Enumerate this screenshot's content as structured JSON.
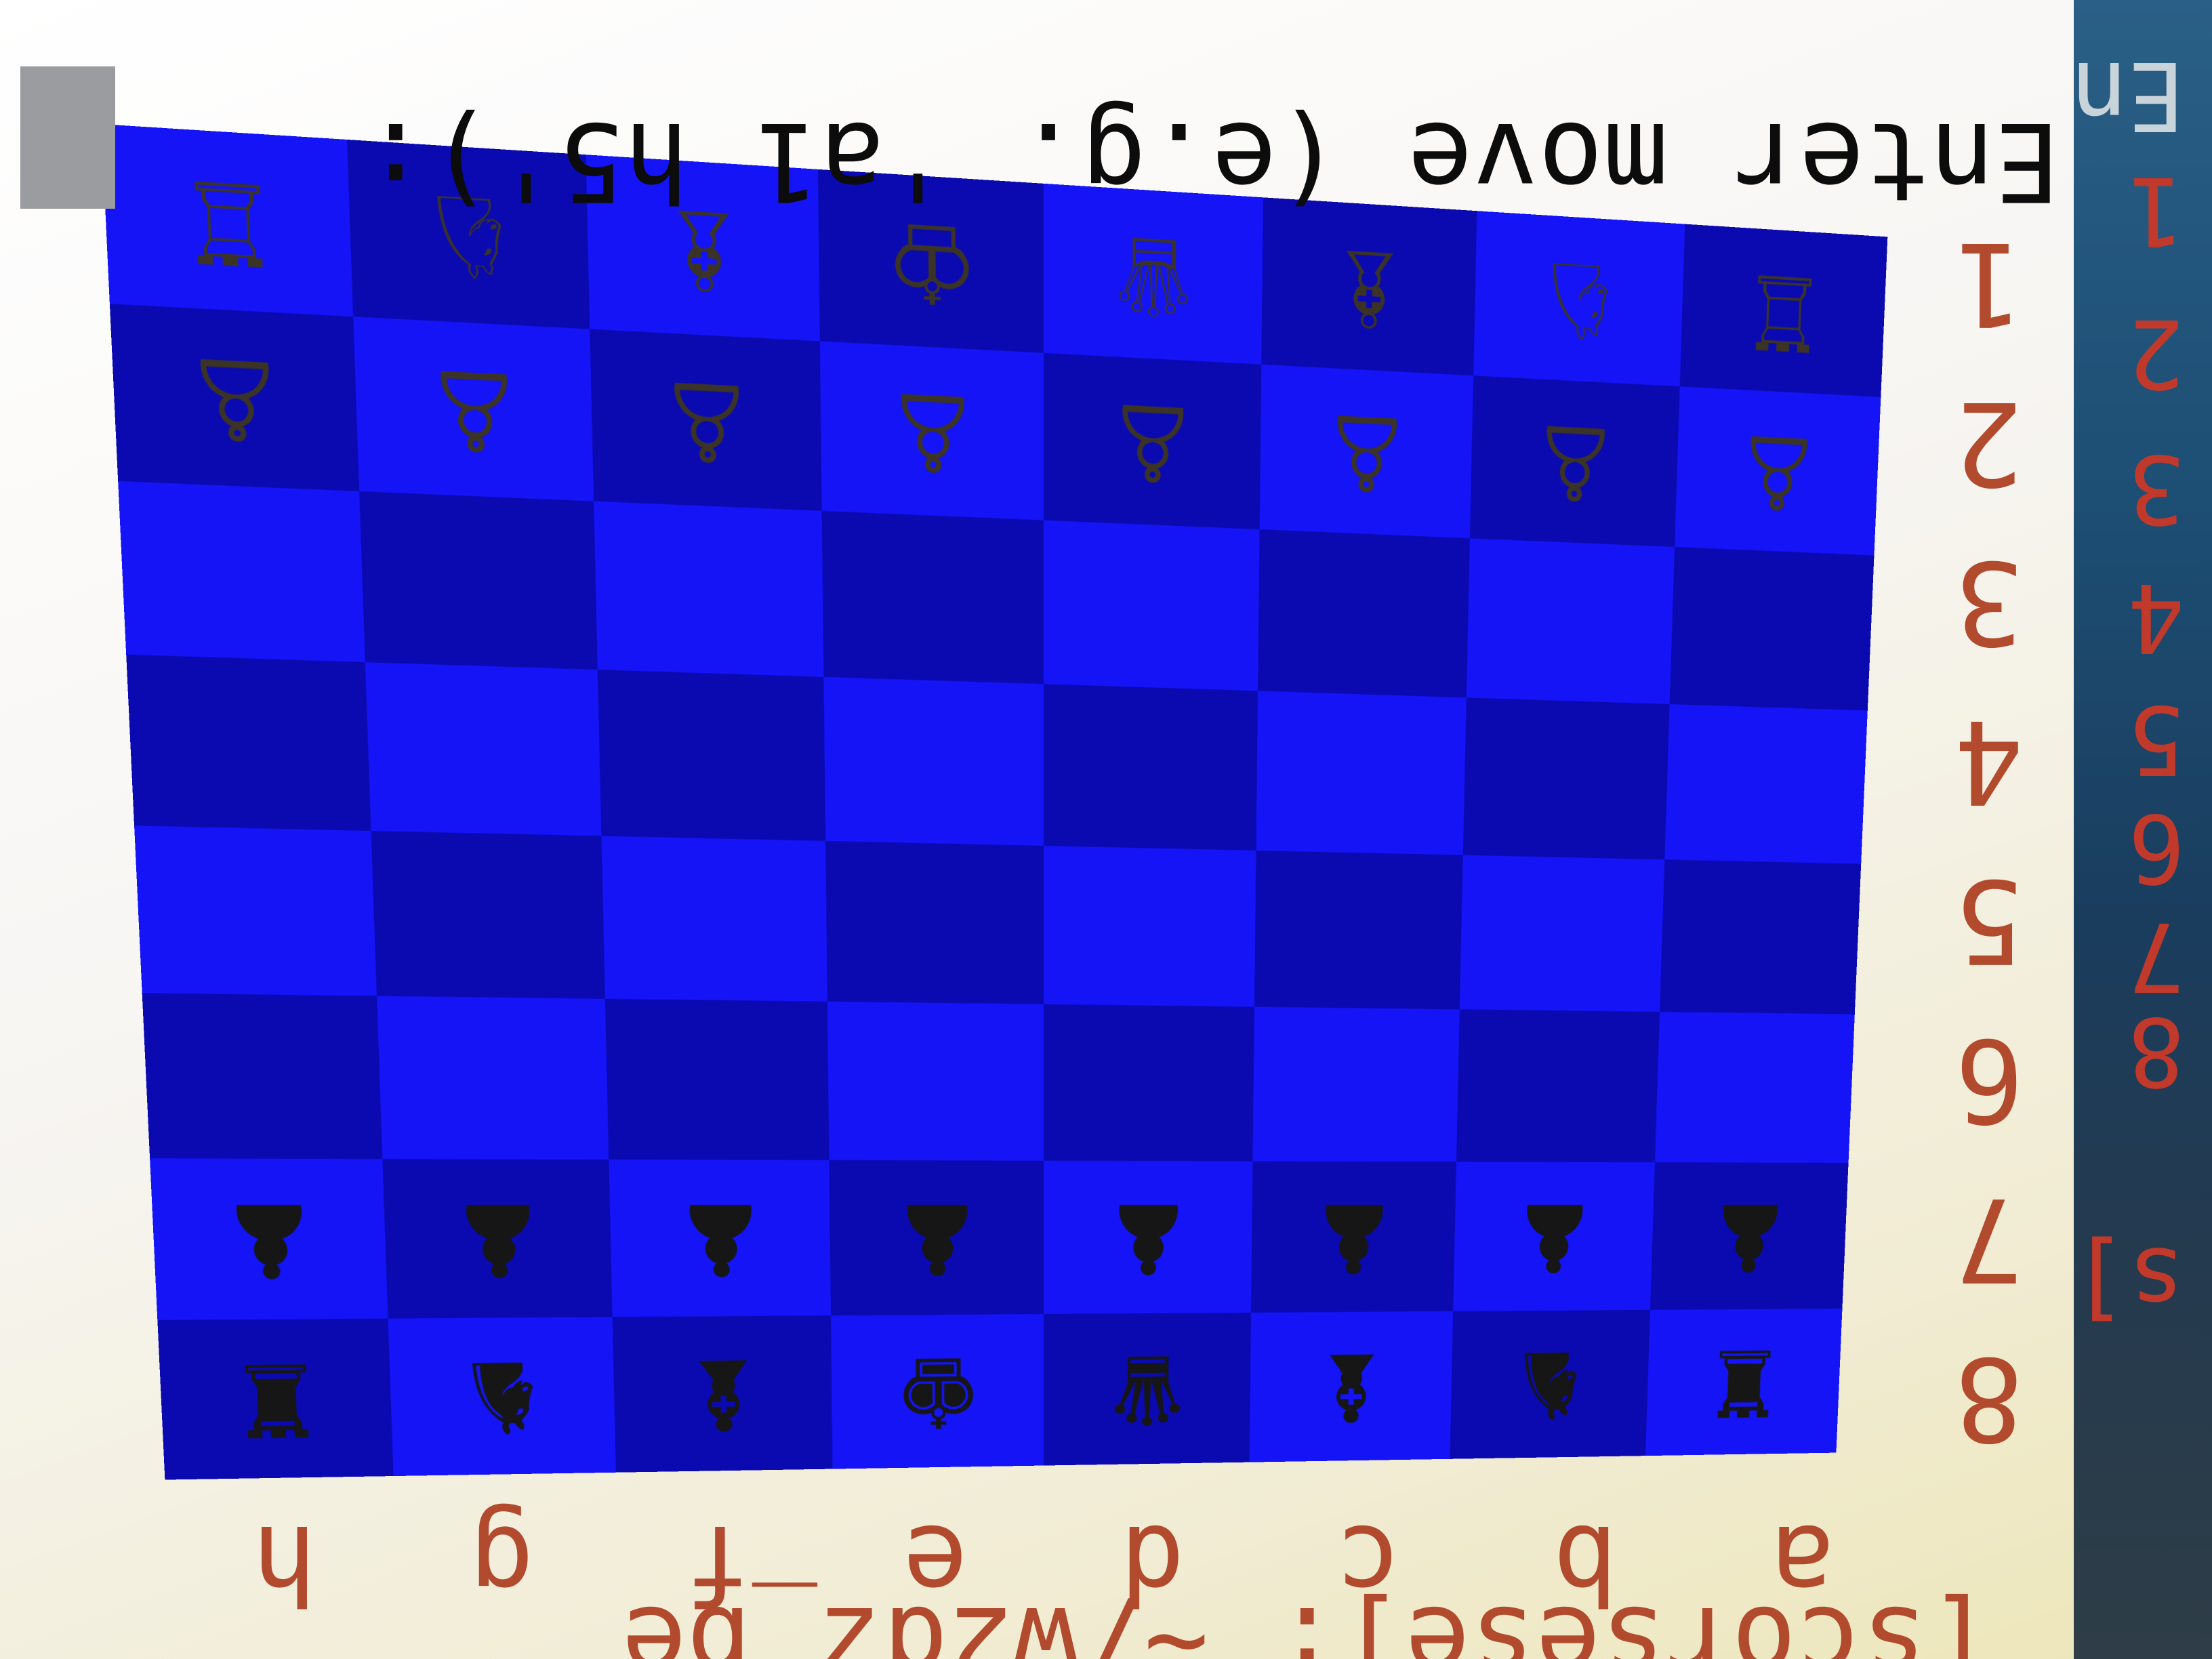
{
  "prompt": {
    "text": "Enter move (e.g. 'a1 h5'):"
  },
  "shell": {
    "text": "[scorsese]: ~/w2dz_be"
  },
  "board": {
    "ranks": [
      "8",
      "7",
      "6",
      "5",
      "4",
      "3",
      "2",
      "1"
    ],
    "files": [
      "a",
      "b",
      "c",
      "d",
      "e",
      "f",
      "g",
      "h"
    ],
    "light_color": "#1414f6",
    "dark_color": "#0a0ab0",
    "pieces": [
      [
        "♜",
        "♞",
        "♝",
        "♛",
        "♚",
        "♝",
        "♞",
        "♜"
      ],
      [
        "♟",
        "♟",
        "♟",
        "♟",
        "♟",
        "♟",
        "♟",
        "♟"
      ],
      [
        "",
        "",
        "",
        "",
        "",
        "",
        "",
        ""
      ],
      [
        "",
        "",
        "",
        "",
        "",
        "",
        "",
        ""
      ],
      [
        "",
        "",
        "",
        "",
        "",
        "",
        "",
        ""
      ],
      [
        "",
        "",
        "",
        "",
        "",
        "",
        "",
        ""
      ],
      [
        "♙",
        "♙",
        "♙",
        "♙",
        "♙",
        "♙",
        "♙",
        "♙"
      ],
      [
        "♖",
        "♘",
        "♗",
        "♕",
        "♔",
        "♗",
        "♘",
        "♖"
      ]
    ]
  },
  "background_window": {
    "lines": [
      "En",
      "1",
      "2",
      "3",
      "4",
      "5",
      "6",
      "7",
      "8",
      "s]"
    ]
  }
}
